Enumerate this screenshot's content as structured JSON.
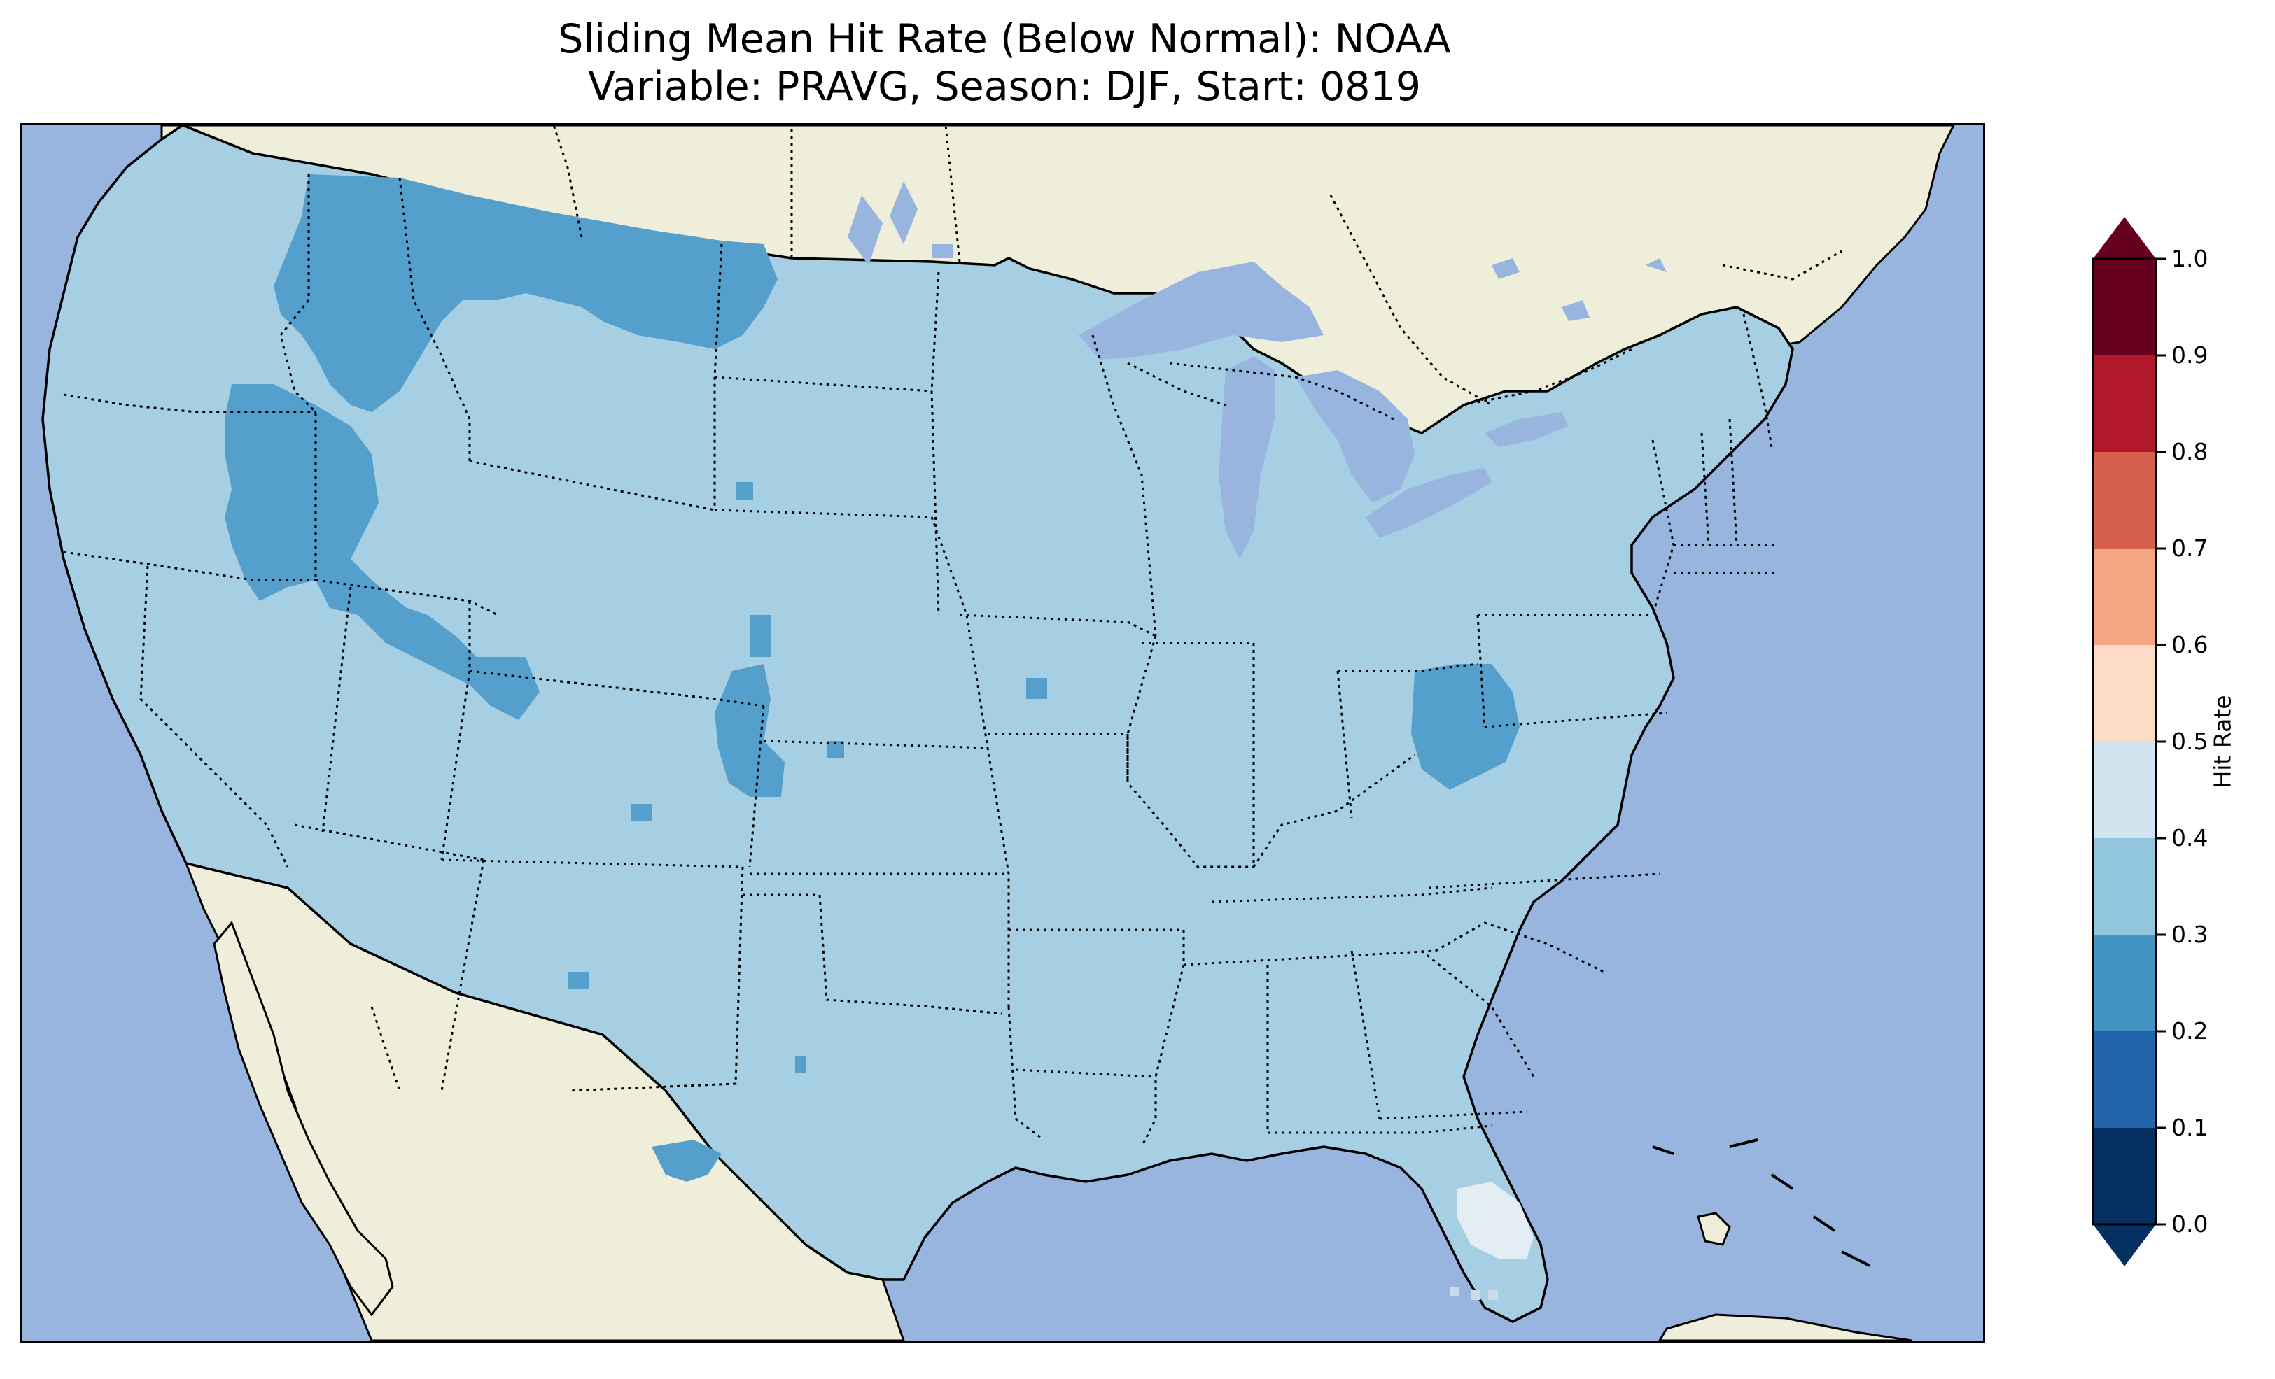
{
  "title": {
    "line1": "Sliding Mean Hit Rate (Below Normal): NOAA",
    "line2": "Variable: PRAVG, Season: DJF, Start: 0819"
  },
  "map": {
    "region": "contiguous-united-states",
    "projection": "lambert-conformal",
    "ocean_color": "#98b5e0",
    "land_color": "#efeedb",
    "coastline_color": "#000000",
    "state_borders": "dotted",
    "field_regions": [
      {
        "name": "most-of-conus",
        "bin": "0.3-0.4",
        "color": "#a7cfe4"
      },
      {
        "name": "northern-rockies-montana",
        "bin": "0.2-0.3",
        "color": "#559fcc"
      },
      {
        "name": "idaho-nevada-utah",
        "bin": "0.2-0.3",
        "color": "#559fcc"
      },
      {
        "name": "eastern-colorado",
        "bin": "0.2-0.3",
        "color": "#559fcc"
      },
      {
        "name": "west-virginia",
        "bin": "0.2-0.3",
        "color": "#559fcc"
      },
      {
        "name": "west-texas",
        "bin": "0.2-0.3",
        "color": "#559fcc"
      },
      {
        "name": "southern-florida",
        "bin": "0.4-0.5",
        "color": "#e2edf4"
      }
    ]
  },
  "colorbar": {
    "label": "Hit Rate",
    "ticks": [
      "0.0",
      "0.1",
      "0.2",
      "0.3",
      "0.4",
      "0.5",
      "0.6",
      "0.7",
      "0.8",
      "0.9",
      "1.0"
    ],
    "extend": "both",
    "under_color": "#053061",
    "over_color": "#67001f",
    "bins": [
      {
        "range": [
          0.0,
          0.1
        ],
        "color": "#053061"
      },
      {
        "range": [
          0.1,
          0.2
        ],
        "color": "#2166ac"
      },
      {
        "range": [
          0.2,
          0.3
        ],
        "color": "#4393c3"
      },
      {
        "range": [
          0.3,
          0.4
        ],
        "color": "#92c5de"
      },
      {
        "range": [
          0.4,
          0.5
        ],
        "color": "#d1e5f0"
      },
      {
        "range": [
          0.5,
          0.6
        ],
        "color": "#fddbc7"
      },
      {
        "range": [
          0.6,
          0.7
        ],
        "color": "#f4a582"
      },
      {
        "range": [
          0.7,
          0.8
        ],
        "color": "#d6604d"
      },
      {
        "range": [
          0.8,
          0.9
        ],
        "color": "#b2182b"
      },
      {
        "range": [
          0.9,
          1.0
        ],
        "color": "#67001f"
      }
    ]
  }
}
